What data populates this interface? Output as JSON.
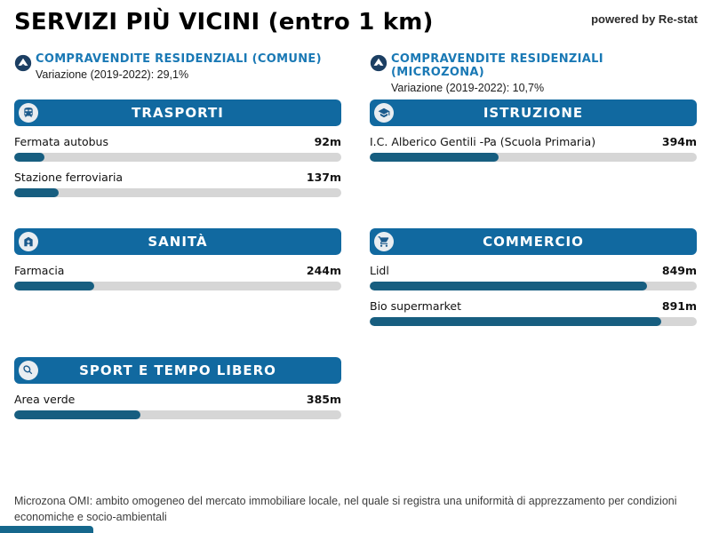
{
  "page": {
    "title": "SERVIZI PIÙ VICINI (entro 1 km)",
    "powered_by": "powered by Re-stat",
    "footnote": "Microzona OMI: ambito omogeneo del mercato immobiliare locale, nel quale si registra una uniformità di apprezzamento per condizioni economiche e socio-ambientali"
  },
  "stats": [
    {
      "icon": "up-trend-circle-icon",
      "title": "COMPRAVENDITE RESIDENZIALI (COMUNE)",
      "variation": "Variazione (2019-2022): 29,1%"
    },
    {
      "icon": "up-trend-circle-icon",
      "title": "COMPRAVENDITE RESIDENZIALI (MICROZONA)",
      "variation": "Variazione (2019-2022): 10,7%"
    }
  ],
  "scale": {
    "max_meters": 1000
  },
  "sections": [
    {
      "id": "trasporti",
      "title": "TRASPORTI",
      "icon": "train-icon",
      "column": "left",
      "row": 0,
      "items": [
        {
          "label": "Fermata autobus",
          "value": "92m",
          "meters": 92
        },
        {
          "label": "Stazione ferroviaria",
          "value": "137m",
          "meters": 137
        }
      ]
    },
    {
      "id": "istruzione",
      "title": "ISTRUZIONE",
      "icon": "school-icon",
      "column": "right",
      "row": 0,
      "items": [
        {
          "label": "I.C. Alberico Gentili -Pa (Scuola Primaria)",
          "value": "394m",
          "meters": 394
        }
      ]
    },
    {
      "id": "sanita",
      "title": "SANITÀ",
      "icon": "hospital-icon",
      "column": "left",
      "row": 1,
      "items": [
        {
          "label": "Farmacia",
          "value": "244m",
          "meters": 244
        }
      ]
    },
    {
      "id": "commercio",
      "title": "COMMERCIO",
      "icon": "cart-icon",
      "column": "right",
      "row": 1,
      "items": [
        {
          "label": "Lidl",
          "value": "849m",
          "meters": 849
        },
        {
          "label": "Bio supermarket",
          "value": "891m",
          "meters": 891
        }
      ]
    },
    {
      "id": "sport",
      "title": "SPORT E TEMPO LIBERO",
      "icon": "tennis-icon",
      "column": "left",
      "row": 2,
      "items": [
        {
          "label": "Area verde",
          "value": "385m",
          "meters": 385
        }
      ]
    }
  ],
  "chart_data": [
    {
      "type": "bar",
      "orientation": "horizontal",
      "title": "TRASPORTI",
      "categories": [
        "Fermata autobus",
        "Stazione ferroviaria"
      ],
      "values": [
        92,
        137
      ],
      "data_labels": [
        "92m",
        "137m"
      ],
      "unit": "m",
      "xlim": [
        0,
        1000
      ],
      "grid": false,
      "legend": false
    },
    {
      "type": "bar",
      "orientation": "horizontal",
      "title": "ISTRUZIONE",
      "categories": [
        "I.C. Alberico Gentili -Pa (Scuola Primaria)"
      ],
      "values": [
        394
      ],
      "data_labels": [
        "394m"
      ],
      "unit": "m",
      "xlim": [
        0,
        1000
      ],
      "grid": false,
      "legend": false
    },
    {
      "type": "bar",
      "orientation": "horizontal",
      "title": "SANITÀ",
      "categories": [
        "Farmacia"
      ],
      "values": [
        244
      ],
      "data_labels": [
        "244m"
      ],
      "unit": "m",
      "xlim": [
        0,
        1000
      ],
      "grid": false,
      "legend": false
    },
    {
      "type": "bar",
      "orientation": "horizontal",
      "title": "COMMERCIO",
      "categories": [
        "Lidl",
        "Bio supermarket"
      ],
      "values": [
        849,
        891
      ],
      "data_labels": [
        "849m",
        "891m"
      ],
      "unit": "m",
      "xlim": [
        0,
        1000
      ],
      "grid": false,
      "legend": false
    },
    {
      "type": "bar",
      "orientation": "horizontal",
      "title": "SPORT E TEMPO LIBERO",
      "categories": [
        "Area verde"
      ],
      "values": [
        385
      ],
      "data_labels": [
        "385m"
      ],
      "unit": "m",
      "xlim": [
        0,
        1000
      ],
      "grid": false,
      "legend": false
    }
  ],
  "colors": {
    "header_blue": "#1169a0",
    "accent_blue": "#1a79b5",
    "bar_fill": "#175e80",
    "bar_track": "#d6d6d6",
    "navy_circle": "#1c3f63",
    "icon_glyph": "#1b5a8c",
    "partial_bar": "#15678c"
  }
}
